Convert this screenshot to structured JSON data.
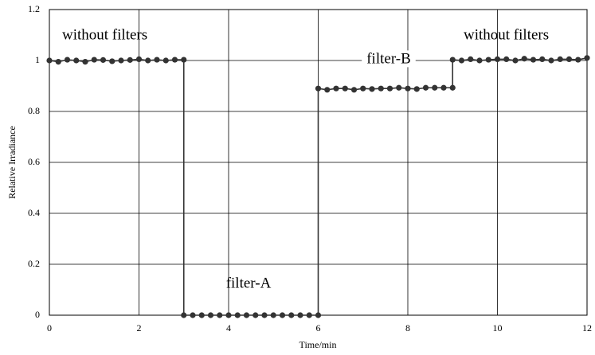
{
  "chart_data": {
    "type": "line",
    "xlabel": "Time/min",
    "ylabel": "Relative Irradiance",
    "annotations": [
      "without filters",
      "filter-B",
      "filter-A",
      "without filters"
    ],
    "xlim": [
      0,
      12
    ],
    "xticks": [
      0,
      2,
      4,
      6,
      8,
      10,
      12
    ],
    "ylim": [
      0,
      1.2
    ],
    "yticks": [
      0,
      0.2,
      0.4,
      0.6,
      0.8,
      1,
      1.2
    ],
    "grid": true,
    "x": [
      0,
      0.2,
      0.4,
      0.6,
      0.8,
      1.0,
      1.2,
      1.4,
      1.6,
      1.8,
      2.0,
      2.2,
      2.4,
      2.6,
      2.8,
      3.0,
      3.0,
      3.2,
      3.4,
      3.6,
      3.8,
      4.0,
      4.2,
      4.4,
      4.6,
      4.8,
      5.0,
      5.2,
      5.4,
      5.6,
      5.8,
      6.0,
      6.0,
      6.2,
      6.4,
      6.6,
      6.8,
      7.0,
      7.2,
      7.4,
      7.6,
      7.8,
      8.0,
      8.2,
      8.4,
      8.6,
      8.8,
      9.0,
      9.0,
      9.2,
      9.4,
      9.6,
      9.8,
      10.0,
      10.2,
      10.4,
      10.6,
      10.8,
      11.0,
      11.2,
      11.4,
      11.6,
      11.8,
      12.0
    ],
    "series": [
      {
        "name": "Relative Irradiance",
        "color": "#333333",
        "values": [
          1.0,
          0.995,
          1.003,
          1.0,
          0.995,
          1.003,
          1.002,
          0.997,
          1.0,
          1.002,
          1.005,
          1.0,
          1.003,
          1.0,
          1.003,
          1.003,
          0,
          0,
          0,
          0,
          0,
          0,
          0,
          0,
          0,
          0,
          0,
          0,
          0,
          0,
          0,
          0,
          0.89,
          0.885,
          0.89,
          0.89,
          0.885,
          0.89,
          0.888,
          0.89,
          0.89,
          0.893,
          0.89,
          0.888,
          0.893,
          0.893,
          0.893,
          0.893,
          1.003,
          1.0,
          1.005,
          1.0,
          1.003,
          1.005,
          1.005,
          1.0,
          1.007,
          1.003,
          1.005,
          1.0,
          1.005,
          1.005,
          1.003,
          1.01
        ]
      }
    ]
  }
}
